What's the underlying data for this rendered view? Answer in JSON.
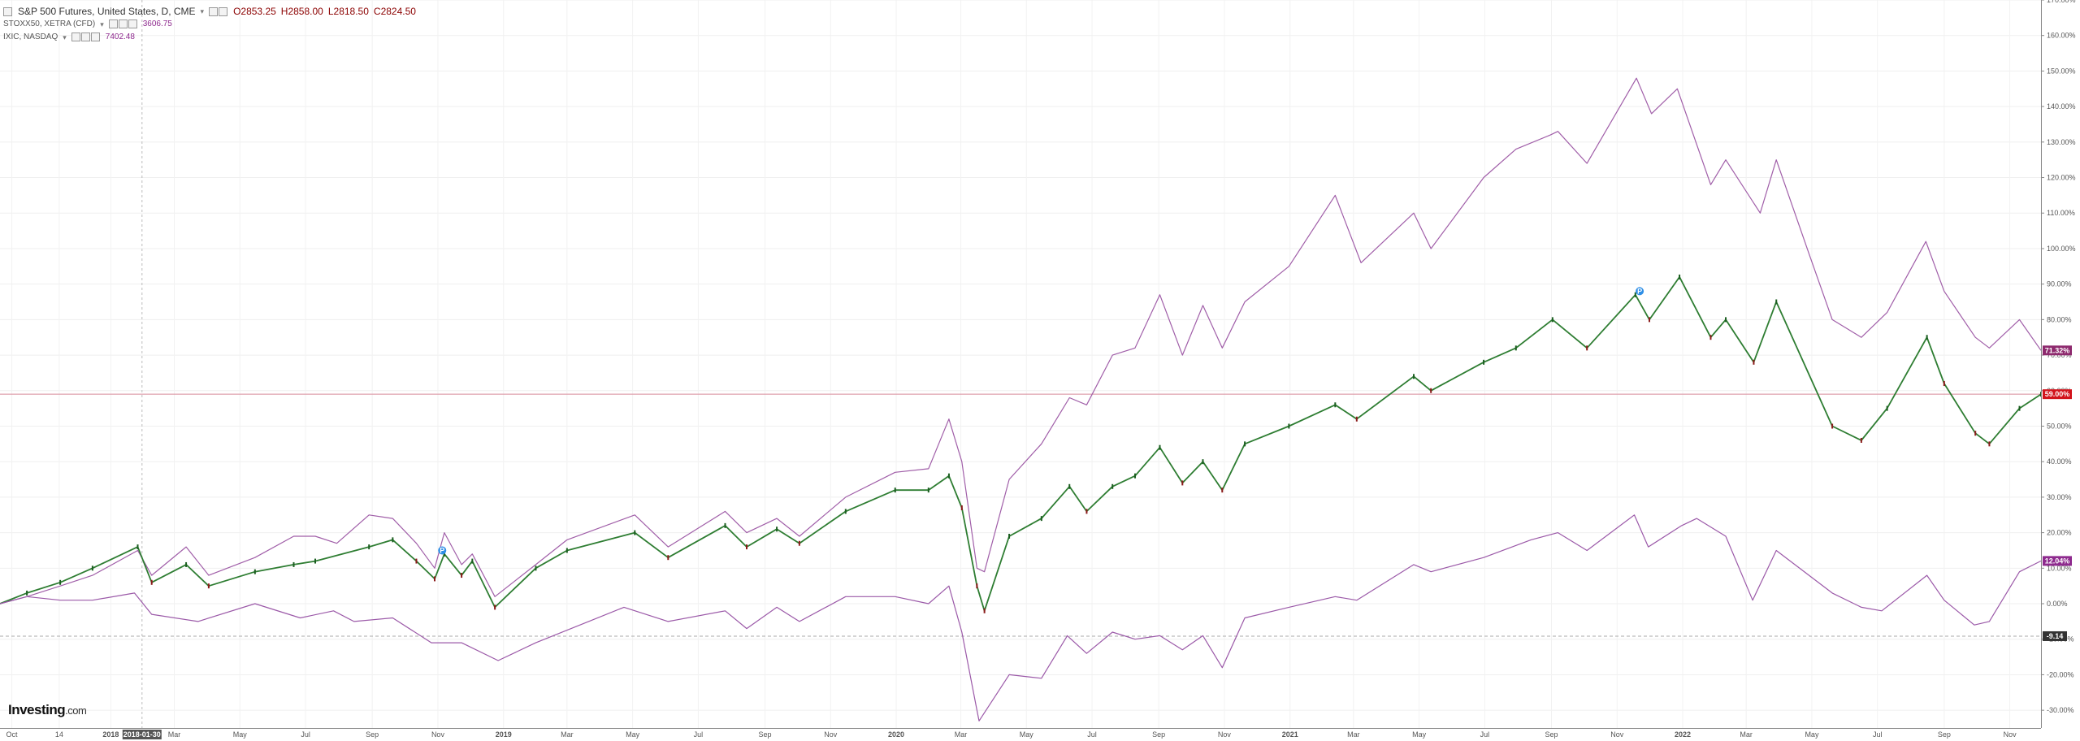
{
  "legend": {
    "main": {
      "name": "S&P 500 Futures, United States, D, CME",
      "open": "O2853.25",
      "high": "H2858.00",
      "low": "L2818.50",
      "close": "C2824.50"
    },
    "series2": {
      "name": "STOXX50, XETRA (CFD)",
      "value": "3606.75"
    },
    "series3": {
      "name": "IXIC, NASDAQ",
      "value": "7402.48"
    }
  },
  "branding": {
    "logo": "Investing",
    "logo_suffix": ".com"
  },
  "chart_data": {
    "type": "line",
    "y_axis": {
      "unit": "%",
      "range": [
        -35,
        170
      ],
      "ticks": [
        -30,
        -20,
        -10,
        0,
        10,
        20,
        30,
        40,
        50,
        60,
        70,
        80,
        90,
        100,
        110,
        120,
        130,
        140,
        150,
        160,
        170
      ],
      "tick_labels": [
        "-30.00%",
        "-20.00%",
        "-10.00%",
        "0.00%",
        "10.00%",
        "20.00%",
        "30.00%",
        "40.00%",
        "50.00%",
        "60.00%",
        "70.00%",
        "80.00%",
        "90.00%",
        "100.00%",
        "110.00%",
        "120.00%",
        "130.00%",
        "140.00%",
        "150.00%",
        "160.00%",
        "170.00%"
      ]
    },
    "x_axis": {
      "range": [
        "2017-09-20",
        "2022-11-30"
      ],
      "ticks": [
        {
          "date": "2017-10-01",
          "label": "Oct"
        },
        {
          "date": "2017-11-14",
          "label": "14"
        },
        {
          "date": "2018-01-01",
          "label": "2018"
        },
        {
          "date": "2018-03-01",
          "label": "Mar"
        },
        {
          "date": "2018-05-01",
          "label": "May"
        },
        {
          "date": "2018-07-01",
          "label": "Jul"
        },
        {
          "date": "2018-09-01",
          "label": "Sep"
        },
        {
          "date": "2018-11-01",
          "label": "Nov"
        },
        {
          "date": "2019-01-01",
          "label": "2019"
        },
        {
          "date": "2019-03-01",
          "label": "Mar"
        },
        {
          "date": "2019-05-01",
          "label": "May"
        },
        {
          "date": "2019-07-01",
          "label": "Jul"
        },
        {
          "date": "2019-09-01",
          "label": "Sep"
        },
        {
          "date": "2019-11-01",
          "label": "Nov"
        },
        {
          "date": "2020-01-01",
          "label": "2020"
        },
        {
          "date": "2020-03-01",
          "label": "Mar"
        },
        {
          "date": "2020-05-01",
          "label": "May"
        },
        {
          "date": "2020-07-01",
          "label": "Jul"
        },
        {
          "date": "2020-09-01",
          "label": "Sep"
        },
        {
          "date": "2020-11-01",
          "label": "Nov"
        },
        {
          "date": "2021-01-01",
          "label": "2021"
        },
        {
          "date": "2021-03-01",
          "label": "Mar"
        },
        {
          "date": "2021-05-01",
          "label": "May"
        },
        {
          "date": "2021-07-01",
          "label": "Jul"
        },
        {
          "date": "2021-09-01",
          "label": "Sep"
        },
        {
          "date": "2021-11-01",
          "label": "Nov"
        },
        {
          "date": "2022-01-01",
          "label": "2022"
        },
        {
          "date": "2022-03-01",
          "label": "Mar"
        },
        {
          "date": "2022-05-01",
          "label": "May"
        },
        {
          "date": "2022-07-01",
          "label": "Jul"
        },
        {
          "date": "2022-09-01",
          "label": "Sep"
        },
        {
          "date": "2022-11-01",
          "label": "Nov"
        }
      ],
      "crosshair_date": "2018-01-30",
      "crosshair_label": "2018-01-30"
    },
    "reference_line": {
      "value": -9.14,
      "label": "-9.14"
    },
    "horizontal_line": {
      "value": 59.0,
      "color": "#d88a9a"
    },
    "series": [
      {
        "name": "IXIC, NASDAQ",
        "color": "#a05ea8",
        "last_label": "71.32%",
        "points": [
          [
            "2017-09-20",
            0
          ],
          [
            "2017-10-15",
            2
          ],
          [
            "2017-11-15",
            5
          ],
          [
            "2017-12-15",
            8
          ],
          [
            "2018-01-26",
            15
          ],
          [
            "2018-02-08",
            8
          ],
          [
            "2018-03-12",
            16
          ],
          [
            "2018-04-02",
            8
          ],
          [
            "2018-05-15",
            13
          ],
          [
            "2018-06-20",
            19
          ],
          [
            "2018-07-10",
            19
          ],
          [
            "2018-07-30",
            17
          ],
          [
            "2018-08-29",
            25
          ],
          [
            "2018-09-20",
            24
          ],
          [
            "2018-10-12",
            17
          ],
          [
            "2018-10-29",
            10
          ],
          [
            "2018-11-07",
            20
          ],
          [
            "2018-11-23",
            11
          ],
          [
            "2018-12-03",
            14
          ],
          [
            "2018-12-24",
            2
          ],
          [
            "2019-01-31",
            11
          ],
          [
            "2019-03-01",
            18
          ],
          [
            "2019-05-03",
            25
          ],
          [
            "2019-06-03",
            16
          ],
          [
            "2019-07-26",
            26
          ],
          [
            "2019-08-15",
            20
          ],
          [
            "2019-09-12",
            24
          ],
          [
            "2019-10-03",
            19
          ],
          [
            "2019-11-15",
            30
          ],
          [
            "2019-12-31",
            37
          ],
          [
            "2020-01-31",
            38
          ],
          [
            "2020-02-19",
            52
          ],
          [
            "2020-03-02",
            40
          ],
          [
            "2020-03-16",
            10
          ],
          [
            "2020-03-23",
            9
          ],
          [
            "2020-04-15",
            35
          ],
          [
            "2020-05-15",
            45
          ],
          [
            "2020-06-10",
            58
          ],
          [
            "2020-06-26",
            56
          ],
          [
            "2020-07-20",
            70
          ],
          [
            "2020-08-10",
            72
          ],
          [
            "2020-09-02",
            87
          ],
          [
            "2020-09-23",
            70
          ],
          [
            "2020-10-12",
            84
          ],
          [
            "2020-10-30",
            72
          ],
          [
            "2020-11-20",
            85
          ],
          [
            "2020-12-31",
            95
          ],
          [
            "2021-02-12",
            115
          ],
          [
            "2021-03-08",
            96
          ],
          [
            "2021-04-26",
            110
          ],
          [
            "2021-05-12",
            100
          ],
          [
            "2021-06-30",
            120
          ],
          [
            "2021-07-30",
            128
          ],
          [
            "2021-08-31",
            132
          ],
          [
            "2021-09-07",
            133
          ],
          [
            "2021-10-04",
            124
          ],
          [
            "2021-11-19",
            148
          ],
          [
            "2021-12-03",
            138
          ],
          [
            "2021-12-27",
            145
          ],
          [
            "2022-01-27",
            118
          ],
          [
            "2022-02-10",
            125
          ],
          [
            "2022-03-14",
            110
          ],
          [
            "2022-03-29",
            125
          ],
          [
            "2022-04-29",
            98
          ],
          [
            "2022-05-20",
            80
          ],
          [
            "2022-06-16",
            75
          ],
          [
            "2022-07-10",
            82
          ],
          [
            "2022-08-15",
            102
          ],
          [
            "2022-09-01",
            88
          ],
          [
            "2022-09-30",
            75
          ],
          [
            "2022-10-13",
            72
          ],
          [
            "2022-11-10",
            80
          ],
          [
            "2022-11-30",
            71.32
          ]
        ]
      },
      {
        "name": "S&P 500 Futures, United States, D, CME",
        "color": "#2e7d32",
        "last_label": "59.00%",
        "points": [
          [
            "2017-09-20",
            0
          ],
          [
            "2017-10-15",
            3
          ],
          [
            "2017-11-15",
            6
          ],
          [
            "2017-12-15",
            10
          ],
          [
            "2018-01-26",
            16
          ],
          [
            "2018-02-08",
            6
          ],
          [
            "2018-03-12",
            11
          ],
          [
            "2018-04-02",
            5
          ],
          [
            "2018-05-15",
            9
          ],
          [
            "2018-06-20",
            11
          ],
          [
            "2018-07-10",
            12
          ],
          [
            "2018-08-29",
            16
          ],
          [
            "2018-09-20",
            18
          ],
          [
            "2018-10-12",
            12
          ],
          [
            "2018-10-29",
            7
          ],
          [
            "2018-11-07",
            14
          ],
          [
            "2018-11-23",
            8
          ],
          [
            "2018-12-03",
            12
          ],
          [
            "2018-12-24",
            -1
          ],
          [
            "2019-01-31",
            10
          ],
          [
            "2019-03-01",
            15
          ],
          [
            "2019-05-03",
            20
          ],
          [
            "2019-06-03",
            13
          ],
          [
            "2019-07-26",
            22
          ],
          [
            "2019-08-15",
            16
          ],
          [
            "2019-09-12",
            21
          ],
          [
            "2019-10-03",
            17
          ],
          [
            "2019-11-15",
            26
          ],
          [
            "2019-12-31",
            32
          ],
          [
            "2020-01-31",
            32
          ],
          [
            "2020-02-19",
            36
          ],
          [
            "2020-03-02",
            27
          ],
          [
            "2020-03-16",
            5
          ],
          [
            "2020-03-23",
            -2
          ],
          [
            "2020-04-15",
            19
          ],
          [
            "2020-05-15",
            24
          ],
          [
            "2020-06-10",
            33
          ],
          [
            "2020-06-26",
            26
          ],
          [
            "2020-07-20",
            33
          ],
          [
            "2020-08-10",
            36
          ],
          [
            "2020-09-02",
            44
          ],
          [
            "2020-09-23",
            34
          ],
          [
            "2020-10-12",
            40
          ],
          [
            "2020-10-30",
            32
          ],
          [
            "2020-11-20",
            45
          ],
          [
            "2020-12-31",
            50
          ],
          [
            "2021-02-12",
            56
          ],
          [
            "2021-03-04",
            52
          ],
          [
            "2021-04-26",
            64
          ],
          [
            "2021-05-12",
            60
          ],
          [
            "2021-06-30",
            68
          ],
          [
            "2021-07-30",
            72
          ],
          [
            "2021-09-02",
            80
          ],
          [
            "2021-10-04",
            72
          ],
          [
            "2021-11-18",
            87
          ],
          [
            "2021-12-01",
            80
          ],
          [
            "2021-12-29",
            92
          ],
          [
            "2022-01-27",
            75
          ],
          [
            "2022-02-10",
            80
          ],
          [
            "2022-03-08",
            68
          ],
          [
            "2022-03-29",
            85
          ],
          [
            "2022-05-20",
            50
          ],
          [
            "2022-06-16",
            46
          ],
          [
            "2022-07-10",
            55
          ],
          [
            "2022-08-16",
            75
          ],
          [
            "2022-09-01",
            62
          ],
          [
            "2022-09-30",
            48
          ],
          [
            "2022-10-13",
            45
          ],
          [
            "2022-11-10",
            55
          ],
          [
            "2022-11-30",
            59
          ]
        ]
      },
      {
        "name": "STOXX50, XETRA (CFD)",
        "color": "#9b59a8",
        "last_label": "12.04%",
        "points": [
          [
            "2017-09-20",
            0
          ],
          [
            "2017-10-15",
            2
          ],
          [
            "2017-11-15",
            1
          ],
          [
            "2017-12-15",
            1
          ],
          [
            "2018-01-23",
            3
          ],
          [
            "2018-02-08",
            -3
          ],
          [
            "2018-03-23",
            -5
          ],
          [
            "2018-05-15",
            0
          ],
          [
            "2018-06-26",
            -4
          ],
          [
            "2018-07-27",
            -2
          ],
          [
            "2018-08-15",
            -5
          ],
          [
            "2018-09-20",
            -4
          ],
          [
            "2018-10-26",
            -11
          ],
          [
            "2018-11-23",
            -11
          ],
          [
            "2018-12-27",
            -16
          ],
          [
            "2019-01-31",
            -11
          ],
          [
            "2019-04-23",
            -1
          ],
          [
            "2019-06-03",
            -5
          ],
          [
            "2019-07-26",
            -2
          ],
          [
            "2019-08-15",
            -7
          ],
          [
            "2019-09-12",
            -1
          ],
          [
            "2019-10-03",
            -5
          ],
          [
            "2019-11-15",
            2
          ],
          [
            "2019-12-31",
            2
          ],
          [
            "2020-01-31",
            0
          ],
          [
            "2020-02-19",
            5
          ],
          [
            "2020-03-02",
            -8
          ],
          [
            "2020-03-16",
            -30
          ],
          [
            "2020-03-18",
            -33
          ],
          [
            "2020-04-15",
            -20
          ],
          [
            "2020-05-15",
            -21
          ],
          [
            "2020-06-08",
            -9
          ],
          [
            "2020-06-26",
            -14
          ],
          [
            "2020-07-20",
            -8
          ],
          [
            "2020-08-10",
            -10
          ],
          [
            "2020-09-02",
            -9
          ],
          [
            "2020-09-23",
            -13
          ],
          [
            "2020-10-12",
            -9
          ],
          [
            "2020-10-30",
            -18
          ],
          [
            "2020-11-20",
            -4
          ],
          [
            "2020-12-31",
            -1
          ],
          [
            "2021-02-12",
            2
          ],
          [
            "2021-03-04",
            1
          ],
          [
            "2021-04-26",
            11
          ],
          [
            "2021-05-12",
            9
          ],
          [
            "2021-06-30",
            13
          ],
          [
            "2021-08-13",
            18
          ],
          [
            "2021-09-07",
            20
          ],
          [
            "2021-10-04",
            15
          ],
          [
            "2021-11-17",
            25
          ],
          [
            "2021-11-30",
            16
          ],
          [
            "2021-12-31",
            22
          ],
          [
            "2022-01-14",
            24
          ],
          [
            "2022-02-10",
            19
          ],
          [
            "2022-03-07",
            1
          ],
          [
            "2022-03-29",
            15
          ],
          [
            "2022-05-20",
            3
          ],
          [
            "2022-06-16",
            -1
          ],
          [
            "2022-07-05",
            -2
          ],
          [
            "2022-08-16",
            8
          ],
          [
            "2022-09-01",
            1
          ],
          [
            "2022-09-29",
            -6
          ],
          [
            "2022-10-13",
            -5
          ],
          [
            "2022-11-10",
            9
          ],
          [
            "2022-11-30",
            12.04
          ]
        ]
      }
    ],
    "markers": [
      {
        "date": "2018-11-05",
        "value": 15,
        "label": "P",
        "color": "#2f8fe6"
      },
      {
        "date": "2021-11-22",
        "value": 88,
        "label": "P",
        "color": "#2f8fe6"
      }
    ],
    "grid": true,
    "legend_position": "top-left"
  }
}
